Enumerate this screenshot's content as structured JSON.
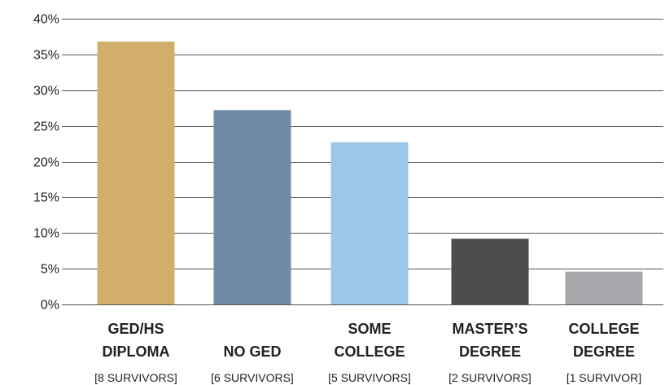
{
  "chart_data": {
    "type": "bar",
    "title": "",
    "xlabel": "",
    "ylabel": "",
    "ylim": [
      0,
      40
    ],
    "grid": true,
    "y_ticks": [
      {
        "value": 0,
        "label": "0%"
      },
      {
        "value": 5,
        "label": "5%"
      },
      {
        "value": 10,
        "label": "10%"
      },
      {
        "value": 15,
        "label": "15%"
      },
      {
        "value": 20,
        "label": "20%"
      },
      {
        "value": 25,
        "label": "25%"
      },
      {
        "value": 30,
        "label": "30%"
      },
      {
        "value": 35,
        "label": "35%"
      },
      {
        "value": 40,
        "label": "40%"
      }
    ],
    "categories": [
      {
        "label_lines": [
          "GED/HS",
          "DIPLOMA"
        ],
        "count_label": "[8 SURVIVORS]"
      },
      {
        "label_lines": [
          "NO GED"
        ],
        "count_label": "[6 SURVIVORS]"
      },
      {
        "label_lines": [
          "SOME",
          "COLLEGE"
        ],
        "count_label": "[5 SURVIVORS]"
      },
      {
        "label_lines": [
          "MASTER’S",
          "DEGREE"
        ],
        "count_label": "[2 SURVIVORS]"
      },
      {
        "label_lines": [
          "COLLEGE",
          "DEGREE"
        ],
        "count_label": "[1 SURVIVOR]"
      }
    ],
    "values": [
      36.8,
      27.2,
      22.7,
      9.2,
      4.6
    ],
    "colors": [
      "#D1AE6A",
      "#6F8BA6",
      "#9DC6E7",
      "#4B4C4E",
      "#A7A8AB"
    ]
  }
}
